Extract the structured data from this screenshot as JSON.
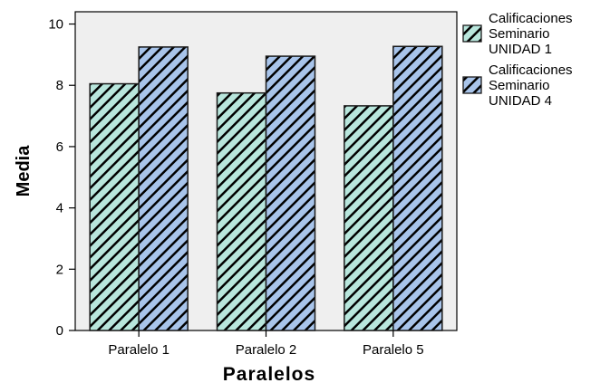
{
  "chart_data": {
    "type": "bar",
    "title": "",
    "xlabel": "Paralelos",
    "ylabel": "Media",
    "categories": [
      "Paralelo 1",
      "Paralelo 2",
      "Paralelo 5"
    ],
    "ylim": [
      0,
      10.4
    ],
    "yticks": [
      "0",
      "2",
      "4",
      "6",
      "8",
      "10"
    ],
    "grid": false,
    "legend_position": "right",
    "series": [
      {
        "name": "Calificaciones Seminario UNIDAD 1",
        "name_lines": [
          "Calificaciones",
          "Seminario",
          "UNIDAD 1"
        ],
        "values": [
          8.05,
          7.75,
          7.33
        ],
        "color": "#b8e6dc",
        "hatch": "diagonal"
      },
      {
        "name": "Calificaciones Seminario UNIDAD 4",
        "name_lines": [
          "Calificaciones",
          "Seminario",
          "UNIDAD 4"
        ],
        "values": [
          9.25,
          8.95,
          9.27
        ],
        "color": "#a8c4ea",
        "hatch": "diagonal"
      }
    ],
    "plot_background": "#efefef"
  }
}
